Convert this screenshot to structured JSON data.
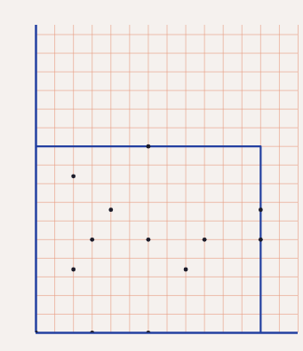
{
  "chart_data": {
    "type": "scatter",
    "tick_labels": false,
    "grid": true,
    "xlim": [
      0,
      14
    ],
    "ylim": [
      0,
      16.5
    ],
    "xticks": [
      0,
      1,
      2,
      3,
      4,
      5,
      6,
      7,
      8,
      9,
      10,
      11,
      12,
      13,
      14
    ],
    "yticks": [
      0,
      1,
      2,
      3,
      4,
      5,
      6,
      7,
      8,
      9,
      10,
      11,
      12,
      13,
      14,
      15,
      16
    ],
    "series": [
      {
        "type": "line",
        "color": "#2340a0",
        "x": [
          0,
          12,
          12
        ],
        "values": [
          10,
          10,
          0
        ]
      },
      {
        "type": "scatter",
        "color": "#1c1c2a",
        "x": [
          0,
          3,
          6,
          6,
          12,
          12,
          2,
          4,
          3,
          6,
          9,
          2,
          8
        ],
        "values": [
          0,
          0,
          0,
          10,
          6.6,
          5,
          8.4,
          6.6,
          5,
          5,
          5,
          3.4,
          3.4
        ]
      }
    ]
  }
}
